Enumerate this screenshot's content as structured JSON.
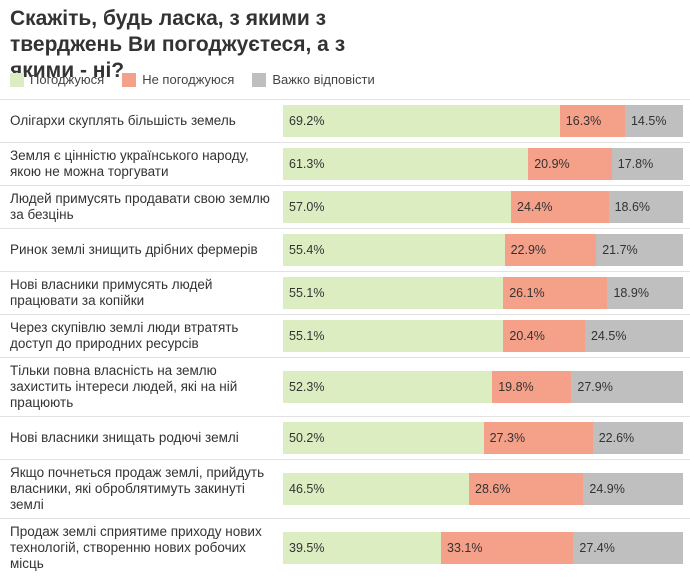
{
  "chart_data": {
    "type": "stacked-bar-horizontal",
    "title": "Скажіть, будь ласка, з якими з тверджень Ви погоджуєтеся, а з якими - ні?",
    "categories": [
      "Олігархи скуплять більшість земель",
      "Земля є цінністю українського народу, якою не можна торгувати",
      "Людей примусять продавати свою землю за безцінь",
      "Ринок землі знищить дрібних фермерів",
      "Нові власники примусять людей працювати за копійки",
      "Через скупівлю землі люди втратять доступ до природних ресурсів",
      "Тільки повна власність на землю захистить інтереси людей, які на ній працюють",
      "Нові власники знищать родючі землі",
      "Якщо почнеться продаж землі, прийдуть власники, які оброблятимуть закинуті землі",
      "Продаж землі сприятиме приходу нових технологій, створенню нових робочих місць"
    ],
    "xlim": [
      0,
      100
    ],
    "series": [
      {
        "name": "Погоджуюся",
        "color": "#dcedc2",
        "values": [
          69.2,
          61.3,
          57.0,
          55.4,
          55.1,
          55.1,
          52.3,
          50.2,
          46.5,
          39.5
        ],
        "value_labels": [
          "69.2%",
          "61.3%",
          "57.0%",
          "55.4%",
          "55.1%",
          "55.1%",
          "52.3%",
          "50.2%",
          "46.5%",
          "39.5%"
        ]
      },
      {
        "name": "Не погоджуюся",
        "color": "#f5a089",
        "values": [
          16.3,
          20.9,
          24.4,
          22.9,
          26.1,
          20.4,
          19.8,
          27.3,
          28.6,
          33.1
        ],
        "value_labels": [
          "16.3%",
          "20.9%",
          "24.4%",
          "22.9%",
          "26.1%",
          "20.4%",
          "19.8%",
          "27.3%",
          "28.6%",
          "33.1%"
        ]
      },
      {
        "name": "Важко відповісти",
        "color": "#bfbfbf",
        "values": [
          14.5,
          17.8,
          18.6,
          21.7,
          18.9,
          24.5,
          27.9,
          22.6,
          24.9,
          27.4
        ],
        "value_labels": [
          "14.5%",
          "17.8%",
          "18.6%",
          "21.7%",
          "18.9%",
          "24.5%",
          "27.9%",
          "22.6%",
          "24.9%",
          "27.4%"
        ]
      }
    ]
  }
}
